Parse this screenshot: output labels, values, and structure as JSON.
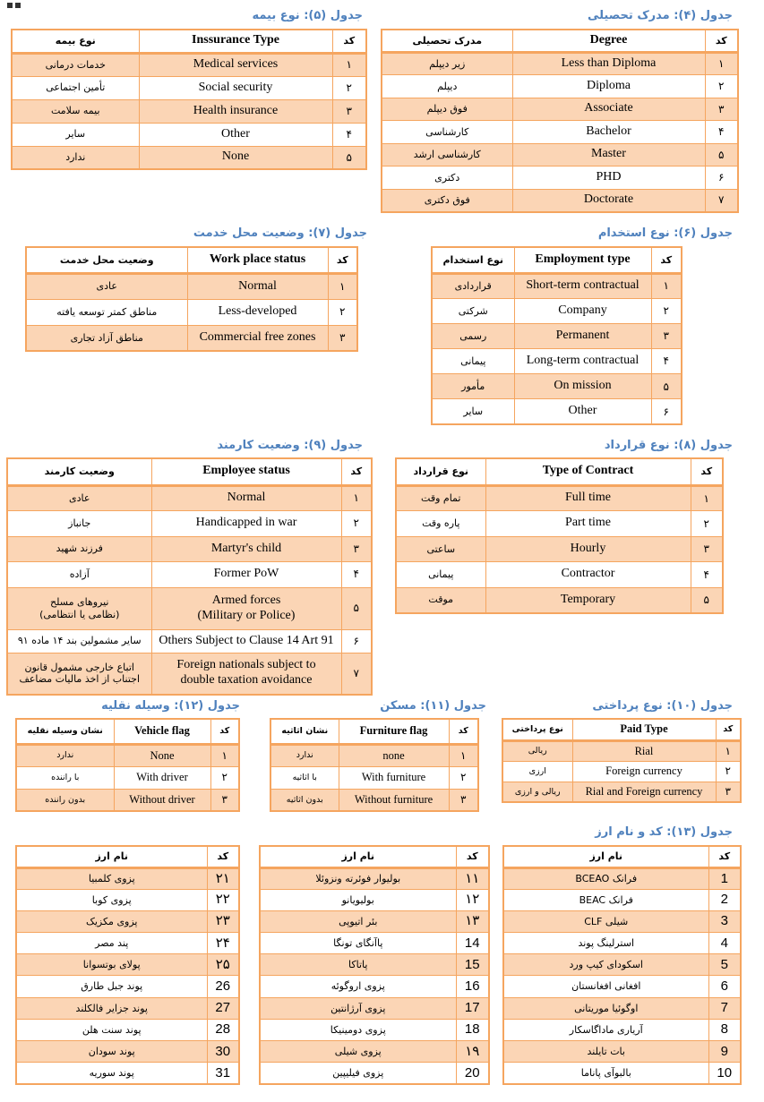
{
  "colors": {
    "border": "#f5a55f",
    "row_fill": "#fbd5b5",
    "title": "#4f81bd"
  },
  "tables": {
    "t5": {
      "title": "جدول (۵): نوع بیمه",
      "headers": [
        "کد",
        "Inssurance Type",
        "نوع بیمه"
      ],
      "rows": [
        [
          "۱",
          "Medical services",
          "خدمات درمانی"
        ],
        [
          "۲",
          "Social security",
          "تأمین اجتماعی"
        ],
        [
          "۳",
          "Health insurance",
          "بیمه سلامت"
        ],
        [
          "۴",
          "Other",
          "سایر"
        ],
        [
          "۵",
          "None",
          "ندارد"
        ]
      ]
    },
    "t4": {
      "title": "جدول (۴): مدرک تحصیلی",
      "headers": [
        "کد",
        "Degree",
        "مدرک تحصیلی"
      ],
      "rows": [
        [
          "۱",
          "Less than Diploma",
          "زیر دیپلم"
        ],
        [
          "۲",
          "Diploma",
          "دیپلم"
        ],
        [
          "۳",
          "Associate",
          "فوق دیپلم"
        ],
        [
          "۴",
          "Bachelor",
          "کارشناسی"
        ],
        [
          "۵",
          "Master",
          "کارشناسی ارشد"
        ],
        [
          "۶",
          "PHD",
          "دکتری"
        ],
        [
          "۷",
          "Doctorate",
          "فوق دکتری"
        ]
      ]
    },
    "t7": {
      "title": "جدول (۷): وضعیت محل خدمت",
      "headers": [
        "کد",
        "Work place status",
        "وضعیت محل خدمت"
      ],
      "rows": [
        [
          "۱",
          "Normal",
          "عادی"
        ],
        [
          "۲",
          "Less-developed",
          "مناطق کمتر توسعه یافته"
        ],
        [
          "۳",
          "Commercial free zones",
          "مناطق آزاد تجاری"
        ]
      ]
    },
    "t6": {
      "title": "جدول (۶): نوع استخدام",
      "headers": [
        "کد",
        "Employment type",
        "نوع استخدام"
      ],
      "rows": [
        [
          "۱",
          "Short-term contractual",
          "قراردادی"
        ],
        [
          "۲",
          "Company",
          "شرکتی"
        ],
        [
          "۳",
          "Permanent",
          "رسمی"
        ],
        [
          "۴",
          "Long-term contractual",
          "پیمانی"
        ],
        [
          "۵",
          "On mission",
          "مأمور"
        ],
        [
          "۶",
          "Other",
          "سایر"
        ]
      ]
    },
    "t9": {
      "title": "جدول (۹): وضعیت کارمند",
      "headers": [
        "کد",
        "Employee status",
        "وضعیت کارمند"
      ],
      "rows": [
        [
          "۱",
          "Normal",
          "عادی"
        ],
        [
          "۲",
          "Handicapped in war",
          "جانباز"
        ],
        [
          "۳",
          "Martyr's child",
          "فرزند شهید"
        ],
        [
          "۴",
          "Former PoW",
          "آزاده"
        ],
        [
          "۵",
          "Armed forces\n(Military or Police)",
          "نیروهای مسلح\n(نظامی یا انتظامی)"
        ],
        [
          "۶",
          "Others Subject to Clause 14 Art 91",
          "سایر مشمولین بند ۱۴ ماده ۹۱"
        ],
        [
          "۷",
          "Foreign nationals subject to\ndouble taxation avoidance",
          "اتباع خارجی مشمول قانون\nاجتناب از اخذ مالیات مضاعف"
        ]
      ]
    },
    "t8": {
      "title": "جدول (۸): نوع قرارداد",
      "headers": [
        "کد",
        "Type of Contract",
        "نوع قرارداد"
      ],
      "rows": [
        [
          "۱",
          "Full time",
          "تمام وقت"
        ],
        [
          "۲",
          "Part time",
          "پاره وقت"
        ],
        [
          "۳",
          "Hourly",
          "ساعتی"
        ],
        [
          "۴",
          "Contractor",
          "پیمانی"
        ],
        [
          "۵",
          "Temporary",
          "موقت"
        ]
      ]
    },
    "t12": {
      "title": "جدول (۱۲): وسیله نقلیه",
      "headers": [
        "کد",
        "Vehicle flag",
        "نشان وسیله نقلیه"
      ],
      "rows": [
        [
          "۱",
          "None",
          "ندارد"
        ],
        [
          "۲",
          "With driver",
          "با راننده"
        ],
        [
          "۳",
          "Without driver",
          "بدون راننده"
        ]
      ]
    },
    "t11": {
      "title": "جدول (۱۱): مسکن",
      "headers": [
        "کد",
        "Furniture flag",
        "نشان اثاثیه"
      ],
      "rows": [
        [
          "۱",
          "none",
          "ندارد"
        ],
        [
          "۲",
          "With furniture",
          "با اثاثیه"
        ],
        [
          "۳",
          "Without furniture",
          "بدون اثاثیه"
        ]
      ]
    },
    "t10": {
      "title": "جدول (۱۰): نوع پرداختی",
      "headers": [
        "کد",
        "Paid Type",
        "نوع پرداختی"
      ],
      "rows": [
        [
          "۱",
          "Rial",
          "ریالی"
        ],
        [
          "۲",
          "Foreign currency",
          "ارزی"
        ],
        [
          "۳",
          "Rial and Foreign currency",
          "ریالی و ارزی"
        ]
      ]
    },
    "t13a": {
      "title": "جدول (۱۳): کد و نام ارز",
      "headers": [
        "کد",
        "نام ارز"
      ],
      "rows": [
        [
          "1",
          "فرانک BCEAO"
        ],
        [
          "2",
          "فرانک BEAC"
        ],
        [
          "3",
          "شیلی CLF"
        ],
        [
          "4",
          "استرلینگ پوند"
        ],
        [
          "5",
          "اسکودای کیپ ورد"
        ],
        [
          "6",
          "افغانی افغانستان"
        ],
        [
          "7",
          "اوگوئیا موریتانی"
        ],
        [
          "8",
          "آریاری ماداگاسکار"
        ],
        [
          "9",
          "بات تایلند"
        ],
        [
          "10",
          "بالبوآی پاناما"
        ]
      ]
    },
    "t13b": {
      "headers": [
        "کد",
        "نام ارز"
      ],
      "rows": [
        [
          "۱۱",
          "بولیوار فوئرته ونزوئلا"
        ],
        [
          "۱۲",
          "بولیویانو"
        ],
        [
          "۱۳",
          "بئر اتیوپی"
        ],
        [
          "14",
          "پاآنگای تونگا"
        ],
        [
          "15",
          "پاتاکا"
        ],
        [
          "16",
          "پزوی اروگوئه"
        ],
        [
          "17",
          "پزوی آرژانتین"
        ],
        [
          "18",
          "پزوی دومینیکا"
        ],
        [
          "۱۹",
          "پزوی شیلی"
        ],
        [
          "20",
          "پزوی فیلیپین"
        ]
      ]
    },
    "t13c": {
      "headers": [
        "کد",
        "نام ارز"
      ],
      "rows": [
        [
          "۲۱",
          "پزوی کلمبیا"
        ],
        [
          "۲۲",
          "پزوی کوبا"
        ],
        [
          "۲۳",
          "پزوی مکزیک"
        ],
        [
          "۲۴",
          "پند مصر"
        ],
        [
          "۲۵",
          "پولای بوتسوانا"
        ],
        [
          "26",
          "پوند جبل طارق"
        ],
        [
          "27",
          "پوند جزایر فالکلند"
        ],
        [
          "28",
          "پوند سنت هلن"
        ],
        [
          "30",
          "پوند سودان"
        ],
        [
          "31",
          "پوند سوریه"
        ]
      ]
    }
  }
}
